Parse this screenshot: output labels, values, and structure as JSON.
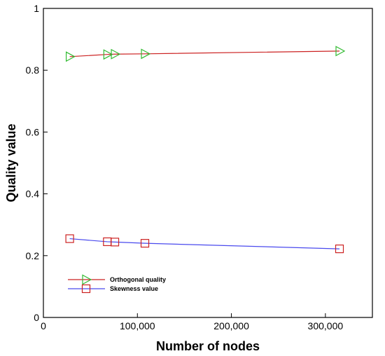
{
  "chart_data": {
    "type": "line",
    "xlabel": "Number of nodes",
    "ylabel": "Quality value",
    "xlim": [
      0,
      350000
    ],
    "ylim": [
      0,
      1
    ],
    "x_ticks": [
      0,
      100000,
      200000,
      300000
    ],
    "x_tick_labels": [
      "0",
      "100,000",
      "200,000",
      "300,000"
    ],
    "y_ticks": [
      0,
      0.2,
      0.4,
      0.6,
      0.8,
      1
    ],
    "y_tick_labels": [
      "0",
      "0.2",
      "0.4",
      "0.6",
      "0.8",
      "1"
    ],
    "grid": false,
    "legend_position": "bottom-left",
    "series": [
      {
        "name": "Orthogonal quality",
        "line_color": "#cc2222",
        "marker_color": "#33bb33",
        "marker": "triangle-right",
        "x": [
          28000,
          68000,
          76000,
          108000,
          315000
        ],
        "y": [
          0.844,
          0.851,
          0.852,
          0.853,
          0.862
        ]
      },
      {
        "name": "Skewness value",
        "line_color": "#4a4aee",
        "marker_color": "#cc2222",
        "marker": "square",
        "x": [
          28000,
          68000,
          76000,
          108000,
          315000
        ],
        "y": [
          0.255,
          0.245,
          0.244,
          0.24,
          0.222
        ]
      }
    ]
  }
}
